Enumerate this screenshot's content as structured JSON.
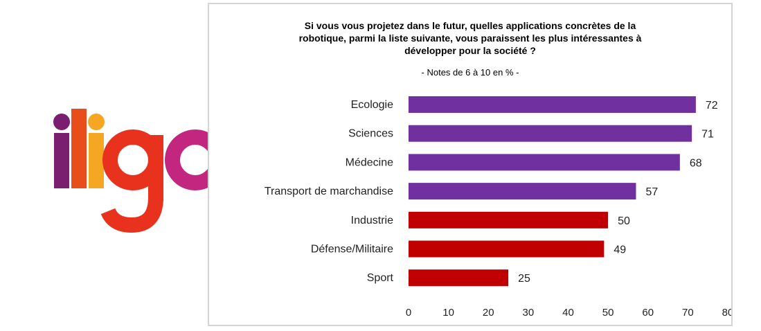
{
  "logo": {
    "text": "iligo",
    "colors": {
      "i1": "#7a1e70",
      "l": "#e84e1b",
      "i2": "#f5a623",
      "g": "#e8321e",
      "o": "#c2267e"
    }
  },
  "chart_data": {
    "type": "bar",
    "orientation": "horizontal",
    "title_lines": [
      "Si vous vous projetez dans le futur, quelles applications concrètes de la",
      "robotique, parmi la liste suivante, vous paraissent les plus intéressantes à",
      "développer pour la société ?"
    ],
    "subtitle": "- Notes de 6 à 10 en % -",
    "categories": [
      "Ecologie",
      "Sciences",
      "Médecine",
      "Transport de marchandise",
      "Industrie",
      "Défense/Militaire",
      "Sport"
    ],
    "values": [
      72,
      71,
      68,
      57,
      50,
      49,
      25
    ],
    "bar_colors": [
      "#7030a0",
      "#7030a0",
      "#7030a0",
      "#7030a0",
      "#c00000",
      "#c00000",
      "#c00000"
    ],
    "xlim": [
      0,
      80
    ],
    "xticks": [
      0,
      10,
      20,
      30,
      40,
      50,
      60,
      70,
      80
    ],
    "grid": false,
    "legend": "none"
  }
}
